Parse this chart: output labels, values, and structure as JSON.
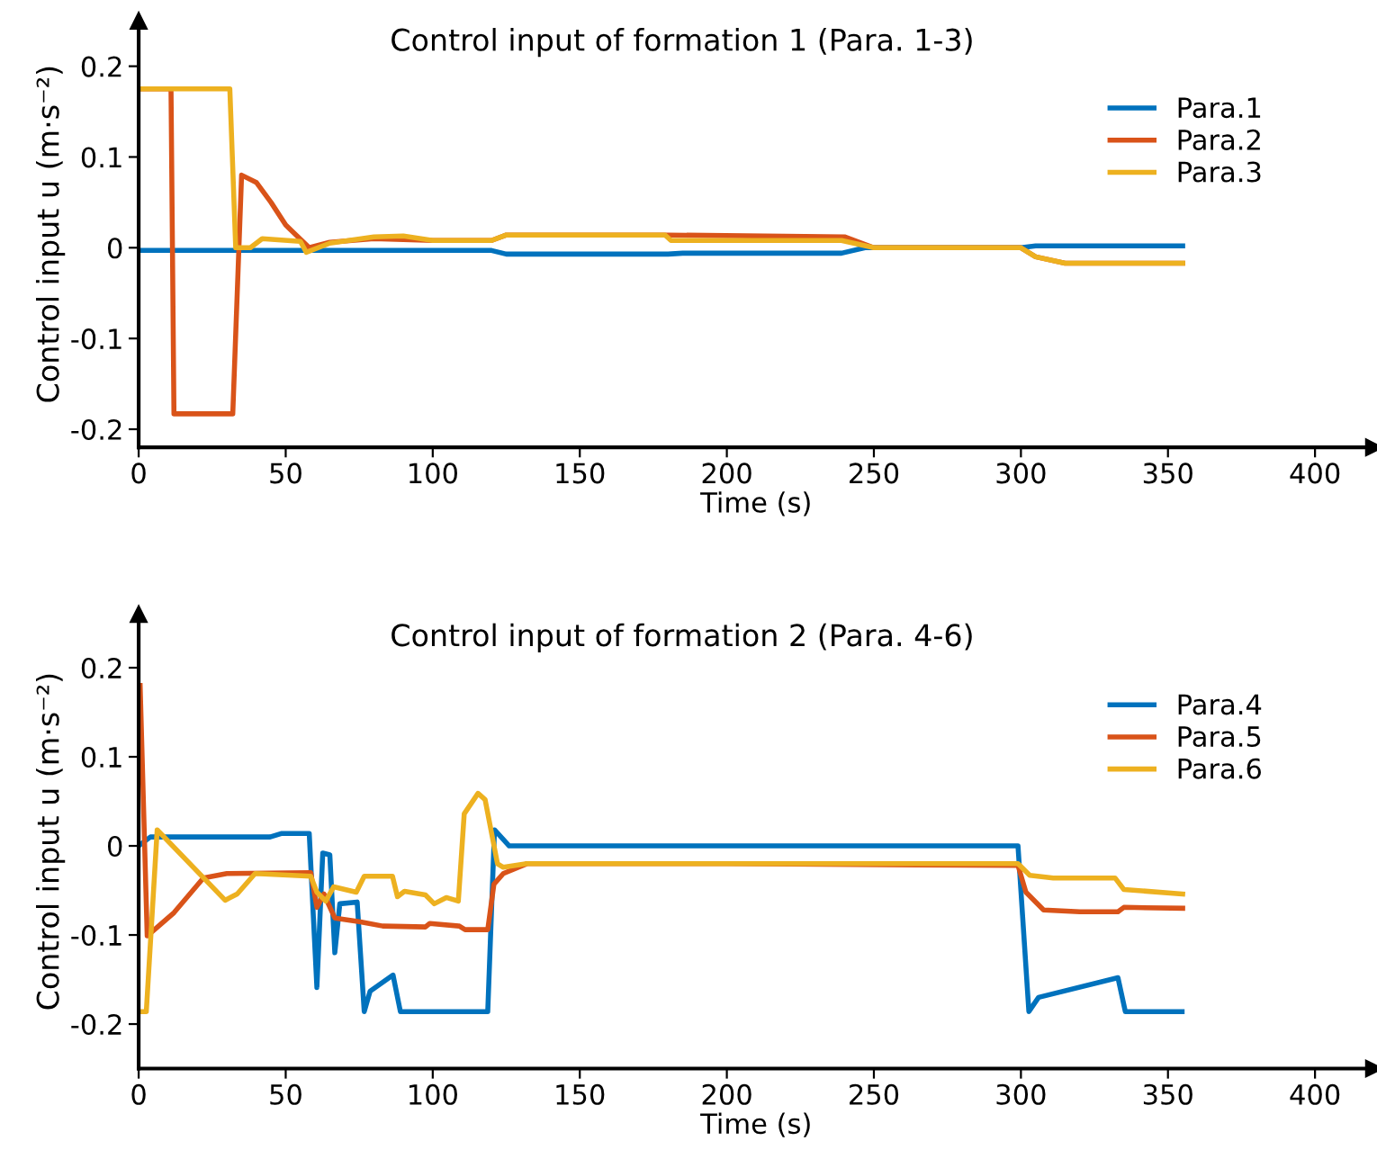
{
  "chart_data": [
    {
      "type": "line",
      "title": "Control input of formation 1 (Para. 1-3)",
      "xlabel": "Time (s)",
      "ylabel": "Control input u (m·s⁻²)",
      "xlim": [
        0,
        420
      ],
      "ylim": [
        -0.22,
        0.25
      ],
      "xticks": [
        0,
        50,
        100,
        150,
        200,
        250,
        300,
        350,
        400
      ],
      "yticks": [
        {
          "value": -0.2,
          "label": "-0.2"
        },
        {
          "value": -0.1,
          "label": "-0.1"
        },
        0,
        {
          "value": 0.1,
          "label": "0.1"
        },
        {
          "value": 0.2,
          "label": "0.2"
        }
      ],
      "grid": false,
      "legend": "top right",
      "line_style": "solid",
      "marker": "none",
      "series": [
        {
          "name": "Para.1",
          "color": "#0072bd",
          "x": [
            0,
            120,
            125,
            180,
            185,
            239,
            247,
            300,
            305,
            355
          ],
          "values": [
            -0.003,
            -0.003,
            -0.007,
            -0.007,
            -0.006,
            -0.006,
            0,
            0,
            0.002,
            0.002
          ]
        },
        {
          "name": "Para.2",
          "color": "#d95319",
          "x": [
            0,
            11,
            12,
            32,
            35,
            40,
            45,
            50,
            58,
            65,
            80,
            100,
            120,
            125,
            180,
            240,
            250,
            300,
            305,
            315,
            355
          ],
          "values": [
            0.175,
            0.175,
            -0.183,
            -0.183,
            0.08,
            0.072,
            0.05,
            0.025,
            0,
            0.006,
            0.01,
            0.008,
            0.008,
            0.014,
            0.014,
            0.012,
            0,
            0,
            -0.01,
            -0.017,
            -0.017
          ]
        },
        {
          "name": "Para.3",
          "color": "#edb120",
          "x": [
            0,
            31,
            33,
            38,
            42,
            55,
            57,
            65,
            80,
            90,
            100,
            120,
            125,
            179,
            181,
            239,
            250,
            300,
            305,
            315,
            355
          ],
          "values": [
            0.175,
            0.175,
            0,
            0,
            0.01,
            0.007,
            -0.005,
            0.005,
            0.012,
            0.013,
            0.008,
            0.008,
            0.014,
            0.014,
            0.008,
            0.008,
            0,
            0,
            -0.01,
            -0.017,
            -0.017
          ]
        }
      ]
    },
    {
      "type": "line",
      "title": "Control input of formation 2 (Para. 4-6)",
      "xlabel": "Time (s)",
      "ylabel": "Control input u (m·s⁻²)",
      "xlim": [
        0,
        420
      ],
      "ylim": [
        -0.25,
        0.26
      ],
      "xticks": [
        0,
        50,
        100,
        150,
        200,
        250,
        300,
        350,
        400
      ],
      "yticks": [
        {
          "value": -0.2,
          "label": "-0.2"
        },
        {
          "value": -0.1,
          "label": "-0.1"
        },
        0,
        {
          "value": 0.1,
          "label": "0.1"
        },
        {
          "value": 0.2,
          "label": "0.2"
        }
      ],
      "grid": false,
      "legend": "top right",
      "line_style": "solid",
      "marker": "none",
      "series": [
        {
          "name": "Para.4",
          "color": "#0072bd",
          "x": [
            0,
            4,
            44.7,
            48.7,
            58,
            60.6,
            62.6,
            65,
            66.7,
            68.4,
            74.3,
            76.7,
            78.7,
            86.5,
            89,
            118.7,
            121,
            126,
            299,
            302.7,
            306,
            333,
            335.5,
            354.8
          ],
          "values": [
            0,
            0.01,
            0.01,
            0.014,
            0.014,
            -0.159,
            -0.008,
            -0.01,
            -0.12,
            -0.065,
            -0.063,
            -0.186,
            -0.163,
            -0.145,
            -0.186,
            -0.186,
            0.018,
            0,
            0,
            -0.186,
            -0.17,
            -0.148,
            -0.186,
            -0.186
          ]
        },
        {
          "name": "Para.5",
          "color": "#d95319",
          "x": [
            0.5,
            2.9,
            12,
            22,
            30,
            58.5,
            60.6,
            63,
            66.7,
            75,
            83,
            97.5,
            99,
            109,
            111,
            118.7,
            120.8,
            124,
            132,
            200,
            299,
            301.7,
            307.7,
            320,
            333,
            335,
            355
          ],
          "values": [
            0.18,
            -0.101,
            -0.075,
            -0.036,
            -0.031,
            -0.03,
            -0.069,
            -0.054,
            -0.081,
            -0.085,
            -0.09,
            -0.091,
            -0.087,
            -0.09,
            -0.094,
            -0.094,
            -0.043,
            -0.031,
            -0.02,
            -0.02,
            -0.022,
            -0.052,
            -0.072,
            -0.074,
            -0.074,
            -0.069,
            -0.07
          ]
        },
        {
          "name": "Para.6",
          "color": "#edb120",
          "x": [
            0,
            2.6,
            6.3,
            29.4,
            33.5,
            39.6,
            58.5,
            60.6,
            63.6,
            66.3,
            74,
            76.7,
            86.3,
            88,
            90.4,
            97.5,
            100.5,
            104.6,
            108.7,
            110.7,
            115.4,
            117.8,
            122,
            124,
            132,
            200,
            299,
            303,
            311,
            332,
            335,
            355
          ],
          "values": [
            -0.186,
            -0.186,
            0.018,
            -0.061,
            -0.054,
            -0.031,
            -0.034,
            -0.052,
            -0.062,
            -0.046,
            -0.052,
            -0.034,
            -0.034,
            -0.057,
            -0.051,
            -0.055,
            -0.065,
            -0.058,
            -0.062,
            0.036,
            0.059,
            0.052,
            -0.02,
            -0.024,
            -0.02,
            -0.02,
            -0.02,
            -0.033,
            -0.036,
            -0.036,
            -0.049,
            -0.054
          ]
        }
      ]
    }
  ]
}
